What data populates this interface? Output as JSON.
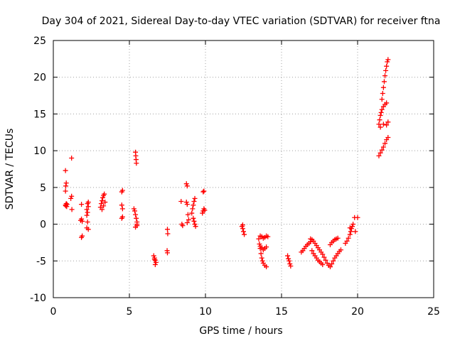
{
  "chart_data": {
    "type": "scatter",
    "title": "Day 304 of 2021, Sidereal Day-to-day VTEC variation (SDTVAR) for receiver ftna",
    "xlabel": "GPS time / hours",
    "ylabel": "SDTVAR / TECUs",
    "xlim": [
      0,
      25
    ],
    "ylim": [
      -10,
      25
    ],
    "xticks": [
      0,
      5,
      10,
      15,
      20,
      25
    ],
    "yticks": [
      -10,
      -5,
      0,
      5,
      10,
      15,
      20,
      25
    ],
    "xtick_labels": [
      "0",
      "5",
      "10",
      "15",
      "20",
      "25"
    ],
    "ytick_labels": [
      "-10",
      "-5",
      "0",
      "5",
      "10",
      "15",
      "20",
      "25"
    ],
    "grid": true,
    "marker": "+",
    "color": "#ff0000",
    "series": [
      {
        "name": "SDTVAR",
        "points": [
          [
            0.8,
            2.6
          ],
          [
            0.82,
            2.5
          ],
          [
            0.85,
            2.8
          ],
          [
            0.88,
            2.4
          ],
          [
            0.9,
            2.7
          ],
          [
            0.8,
            4.5
          ],
          [
            0.82,
            5.2
          ],
          [
            0.85,
            5.6
          ],
          [
            0.8,
            7.3
          ],
          [
            1.2,
            9.0
          ],
          [
            1.15,
            3.5
          ],
          [
            1.2,
            3.8
          ],
          [
            1.22,
            2.0
          ],
          [
            1.8,
            0.5
          ],
          [
            1.85,
            0.7
          ],
          [
            1.9,
            0.4
          ],
          [
            1.85,
            -1.8
          ],
          [
            1.9,
            -1.6
          ],
          [
            1.85,
            2.7
          ],
          [
            2.2,
            1.2
          ],
          [
            2.25,
            1.6
          ],
          [
            2.2,
            2.0
          ],
          [
            2.3,
            2.4
          ],
          [
            2.25,
            2.8
          ],
          [
            2.3,
            3.0
          ],
          [
            2.25,
            0.3
          ],
          [
            2.3,
            -0.7
          ],
          [
            2.2,
            -0.5
          ],
          [
            3.1,
            2.3
          ],
          [
            3.15,
            2.8
          ],
          [
            3.2,
            3.2
          ],
          [
            3.25,
            3.6
          ],
          [
            3.3,
            3.9
          ],
          [
            3.35,
            4.1
          ],
          [
            3.2,
            2.0
          ],
          [
            3.3,
            2.5
          ],
          [
            3.4,
            3.0
          ],
          [
            4.5,
            4.4
          ],
          [
            4.55,
            4.6
          ],
          [
            4.5,
            2.6
          ],
          [
            4.55,
            2.1
          ],
          [
            4.5,
            0.8
          ],
          [
            4.55,
            1.0
          ],
          [
            5.3,
            2.1
          ],
          [
            5.35,
            1.8
          ],
          [
            5.4,
            1.3
          ],
          [
            5.45,
            0.8
          ],
          [
            5.5,
            0.3
          ],
          [
            5.5,
            -0.2
          ],
          [
            5.4,
            -0.4
          ],
          [
            5.5,
            0.0
          ],
          [
            5.4,
            9.8
          ],
          [
            5.42,
            9.3
          ],
          [
            5.44,
            8.8
          ],
          [
            5.46,
            8.3
          ],
          [
            6.6,
            -4.3
          ],
          [
            6.65,
            -4.6
          ],
          [
            6.7,
            -4.9
          ],
          [
            6.75,
            -5.2
          ],
          [
            6.7,
            -5.5
          ],
          [
            6.65,
            -4.8
          ],
          [
            7.5,
            -0.7
          ],
          [
            7.52,
            -1.3
          ],
          [
            7.48,
            -3.6
          ],
          [
            7.5,
            -3.9
          ],
          [
            8.4,
            3.1
          ],
          [
            8.45,
            0.0
          ],
          [
            8.5,
            -0.2
          ],
          [
            8.75,
            5.5
          ],
          [
            8.8,
            5.2
          ],
          [
            8.75,
            3.0
          ],
          [
            8.8,
            2.7
          ],
          [
            8.85,
            1.3
          ],
          [
            8.9,
            0.6
          ],
          [
            8.8,
            0.2
          ],
          [
            9.1,
            1.5
          ],
          [
            9.15,
            2.1
          ],
          [
            9.2,
            2.6
          ],
          [
            9.25,
            3.1
          ],
          [
            9.3,
            3.5
          ],
          [
            9.2,
            0.8
          ],
          [
            9.25,
            0.4
          ],
          [
            9.3,
            0.0
          ],
          [
            9.35,
            -0.3
          ],
          [
            9.8,
            1.5
          ],
          [
            9.85,
            1.8
          ],
          [
            9.9,
            2.1
          ],
          [
            9.95,
            1.9
          ],
          [
            9.85,
            4.4
          ],
          [
            9.9,
            4.5
          ],
          [
            12.4,
            -0.3
          ],
          [
            12.45,
            -0.6
          ],
          [
            12.5,
            -1.0
          ],
          [
            12.55,
            -1.4
          ],
          [
            12.45,
            -0.1
          ],
          [
            13.5,
            -2.0
          ],
          [
            13.55,
            -2.7
          ],
          [
            13.6,
            -3.3
          ],
          [
            13.65,
            -4.0
          ],
          [
            13.7,
            -4.6
          ],
          [
            13.75,
            -5.0
          ],
          [
            13.8,
            -5.3
          ],
          [
            13.9,
            -5.6
          ],
          [
            14.0,
            -5.8
          ],
          [
            13.6,
            -1.6
          ],
          [
            13.7,
            -1.7
          ],
          [
            13.8,
            -1.9
          ],
          [
            13.9,
            -1.8
          ],
          [
            14.0,
            -1.6
          ],
          [
            14.1,
            -1.7
          ],
          [
            13.6,
            -3.0
          ],
          [
            13.7,
            -3.2
          ],
          [
            13.8,
            -3.5
          ],
          [
            13.9,
            -3.3
          ],
          [
            14.0,
            -3.1
          ],
          [
            15.4,
            -4.3
          ],
          [
            15.45,
            -4.7
          ],
          [
            15.5,
            -5.0
          ],
          [
            15.55,
            -5.4
          ],
          [
            15.6,
            -5.7
          ],
          [
            16.3,
            -3.8
          ],
          [
            16.4,
            -3.6
          ],
          [
            16.5,
            -3.3
          ],
          [
            16.6,
            -3.0
          ],
          [
            16.7,
            -2.8
          ],
          [
            16.8,
            -2.6
          ],
          [
            16.9,
            -2.4
          ],
          [
            17.0,
            -3.6
          ],
          [
            17.1,
            -4.0
          ],
          [
            17.2,
            -4.3
          ],
          [
            17.3,
            -4.6
          ],
          [
            17.4,
            -4.9
          ],
          [
            17.5,
            -5.1
          ],
          [
            17.6,
            -5.3
          ],
          [
            17.7,
            -5.5
          ],
          [
            16.9,
            -2.0
          ],
          [
            17.0,
            -2.1
          ],
          [
            17.1,
            -2.3
          ],
          [
            17.2,
            -2.6
          ],
          [
            17.3,
            -2.9
          ],
          [
            17.4,
            -3.2
          ],
          [
            17.5,
            -3.5
          ],
          [
            17.6,
            -3.8
          ],
          [
            17.7,
            -4.1
          ],
          [
            17.8,
            -4.5
          ],
          [
            17.9,
            -4.9
          ],
          [
            18.0,
            -5.3
          ],
          [
            18.1,
            -5.6
          ],
          [
            18.2,
            -5.8
          ],
          [
            18.3,
            -5.4
          ],
          [
            18.4,
            -5.0
          ],
          [
            18.5,
            -4.6
          ],
          [
            18.6,
            -4.3
          ],
          [
            18.7,
            -4.0
          ],
          [
            18.8,
            -3.7
          ],
          [
            18.9,
            -3.5
          ],
          [
            18.2,
            -2.8
          ],
          [
            18.3,
            -2.5
          ],
          [
            18.4,
            -2.3
          ],
          [
            18.5,
            -2.1
          ],
          [
            18.6,
            -2.0
          ],
          [
            18.7,
            -1.9
          ],
          [
            19.2,
            -2.6
          ],
          [
            19.3,
            -2.3
          ],
          [
            19.4,
            -1.9
          ],
          [
            19.5,
            -1.4
          ],
          [
            19.55,
            -1.0
          ],
          [
            19.6,
            -0.6
          ],
          [
            19.65,
            -0.3
          ],
          [
            19.7,
            0.0
          ],
          [
            19.5,
            -0.5
          ],
          [
            19.8,
            0.9
          ],
          [
            20.0,
            0.9
          ],
          [
            19.85,
            -1.0
          ],
          [
            21.4,
            9.3
          ],
          [
            21.5,
            9.7
          ],
          [
            21.6,
            10.1
          ],
          [
            21.7,
            10.5
          ],
          [
            21.8,
            11.0
          ],
          [
            21.9,
            11.5
          ],
          [
            22.0,
            11.8
          ],
          [
            21.4,
            13.6
          ],
          [
            21.45,
            14.2
          ],
          [
            21.5,
            14.8
          ],
          [
            21.55,
            15.2
          ],
          [
            21.6,
            15.6
          ],
          [
            21.7,
            16.0
          ],
          [
            21.8,
            16.3
          ],
          [
            21.9,
            16.5
          ],
          [
            21.5,
            13.2
          ],
          [
            21.7,
            13.6
          ],
          [
            21.9,
            13.5
          ],
          [
            22.0,
            13.9
          ],
          [
            21.6,
            17.0
          ],
          [
            21.65,
            17.8
          ],
          [
            21.7,
            18.6
          ],
          [
            21.75,
            19.4
          ],
          [
            21.8,
            20.2
          ],
          [
            21.85,
            20.9
          ],
          [
            21.9,
            21.5
          ],
          [
            21.95,
            22.1
          ],
          [
            22.0,
            22.4
          ]
        ]
      }
    ]
  }
}
